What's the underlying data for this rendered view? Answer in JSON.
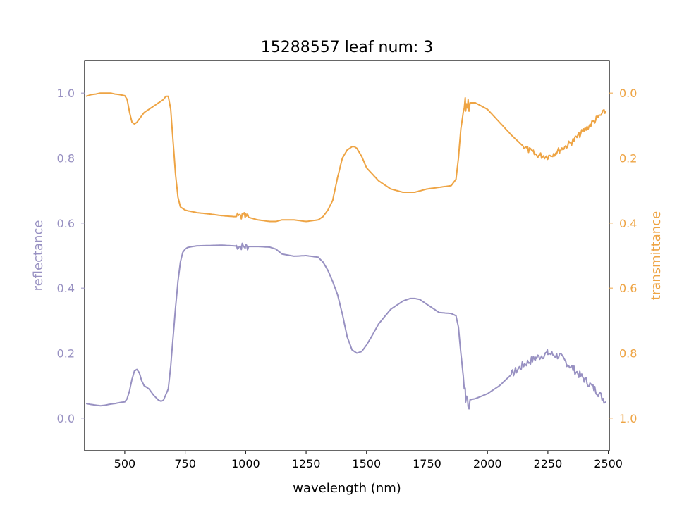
{
  "chart_data": {
    "type": "line",
    "title": "15288557 leaf num: 3",
    "xlabel": "wavelength (nm)",
    "xlim": [
      334,
      2504
    ],
    "xticks": [
      500,
      750,
      1000,
      1250,
      1500,
      1750,
      2000,
      2250,
      2500
    ],
    "x_tick_labels": [
      "500",
      "750",
      "1000",
      "1250",
      "1500",
      "1750",
      "2000",
      "2250",
      "2500"
    ],
    "axes": {
      "left": {
        "label": "reflectance",
        "color": "#9891c2",
        "ylim": [
          -0.1,
          1.1
        ],
        "ticks": [
          0.0,
          0.2,
          0.4,
          0.6,
          0.8,
          1.0
        ],
        "tick_labels": [
          "0.0",
          "0.2",
          "0.4",
          "0.6",
          "0.8",
          "1.0"
        ]
      },
      "right": {
        "label": "transmittance",
        "color": "#eea444",
        "ylim": [
          1.1,
          -0.1
        ],
        "inverted": true,
        "ticks": [
          0.0,
          0.2,
          0.4,
          0.6,
          0.8,
          1.0
        ],
        "tick_labels": [
          "0.0",
          "0.2",
          "0.4",
          "0.6",
          "0.8",
          "1.0"
        ]
      }
    },
    "grid": false,
    "series": [
      {
        "axis": "left",
        "color": "#9891c2",
        "x": [
          340,
          360,
          380,
          400,
          420,
          440,
          460,
          480,
          500,
          510,
          520,
          530,
          540,
          550,
          560,
          570,
          580,
          600,
          620,
          640,
          650,
          660,
          680,
          690,
          700,
          710,
          720,
          730,
          740,
          750,
          760,
          780,
          800,
          850,
          900,
          950,
          1000,
          1050,
          1100,
          1125,
          1150,
          1200,
          1250,
          1300,
          1320,
          1340,
          1360,
          1380,
          1400,
          1420,
          1440,
          1460,
          1480,
          1500,
          1520,
          1550,
          1600,
          1650,
          1680,
          1700,
          1720,
          1750,
          1800,
          1850,
          1870,
          1880,
          1890,
          1900,
          1910,
          1920,
          1950,
          2000,
          2050,
          2100,
          2150,
          2200,
          2250,
          2300,
          2350,
          2400,
          2450,
          2490
        ],
        "y": [
          0.045,
          0.042,
          0.04,
          0.038,
          0.04,
          0.043,
          0.045,
          0.048,
          0.05,
          0.06,
          0.085,
          0.12,
          0.145,
          0.15,
          0.14,
          0.115,
          0.1,
          0.09,
          0.07,
          0.055,
          0.052,
          0.055,
          0.09,
          0.16,
          0.25,
          0.34,
          0.42,
          0.48,
          0.51,
          0.52,
          0.525,
          0.528,
          0.53,
          0.531,
          0.532,
          0.53,
          0.528,
          0.528,
          0.526,
          0.52,
          0.505,
          0.498,
          0.5,
          0.495,
          0.48,
          0.455,
          0.42,
          0.38,
          0.32,
          0.25,
          0.21,
          0.2,
          0.205,
          0.225,
          0.25,
          0.29,
          0.335,
          0.36,
          0.368,
          0.368,
          0.365,
          0.35,
          0.325,
          0.322,
          0.315,
          0.28,
          0.2,
          0.13,
          0.07,
          0.055,
          0.06,
          0.075,
          0.1,
          0.135,
          0.165,
          0.185,
          0.2,
          0.19,
          0.155,
          0.12,
          0.085,
          0.05
        ],
        "noise_ranges": [
          [
            955,
            1010,
            0.012
          ],
          [
            1900,
            1925,
            0.03
          ],
          [
            2100,
            2490,
            0.012
          ]
        ]
      },
      {
        "axis": "right",
        "color": "#eea444",
        "x": [
          340,
          360,
          380,
          400,
          420,
          440,
          460,
          480,
          500,
          510,
          520,
          530,
          540,
          550,
          560,
          570,
          580,
          600,
          620,
          640,
          660,
          670,
          680,
          690,
          700,
          710,
          720,
          730,
          740,
          750,
          760,
          780,
          800,
          850,
          900,
          950,
          1000,
          1050,
          1100,
          1125,
          1150,
          1200,
          1250,
          1300,
          1320,
          1340,
          1360,
          1380,
          1400,
          1420,
          1440,
          1450,
          1460,
          1480,
          1500,
          1550,
          1600,
          1650,
          1700,
          1750,
          1800,
          1850,
          1870,
          1880,
          1890,
          1900,
          1910,
          1920,
          1950,
          2000,
          2050,
          2100,
          2150,
          2200,
          2250,
          2300,
          2350,
          2400,
          2450,
          2490
        ],
        "y": [
          0.01,
          0.005,
          0.003,
          0.0,
          0.0,
          0.0,
          0.003,
          0.005,
          0.008,
          0.02,
          0.06,
          0.09,
          0.095,
          0.09,
          0.08,
          0.07,
          0.06,
          0.05,
          0.04,
          0.03,
          0.02,
          0.01,
          0.01,
          0.05,
          0.15,
          0.25,
          0.32,
          0.35,
          0.355,
          0.36,
          0.362,
          0.365,
          0.368,
          0.372,
          0.377,
          0.38,
          0.38,
          0.39,
          0.395,
          0.395,
          0.39,
          0.39,
          0.395,
          0.39,
          0.38,
          0.36,
          0.33,
          0.26,
          0.2,
          0.175,
          0.165,
          0.165,
          0.17,
          0.195,
          0.23,
          0.27,
          0.295,
          0.305,
          0.305,
          0.295,
          0.29,
          0.285,
          0.265,
          0.2,
          0.11,
          0.06,
          0.04,
          0.03,
          0.03,
          0.05,
          0.09,
          0.13,
          0.165,
          0.19,
          0.195,
          0.175,
          0.15,
          0.115,
          0.08,
          0.055
        ],
        "noise_ranges": [
          [
            960,
            1010,
            0.012
          ],
          [
            1900,
            1925,
            0.03
          ],
          [
            2150,
            2490,
            0.01
          ]
        ]
      }
    ]
  }
}
